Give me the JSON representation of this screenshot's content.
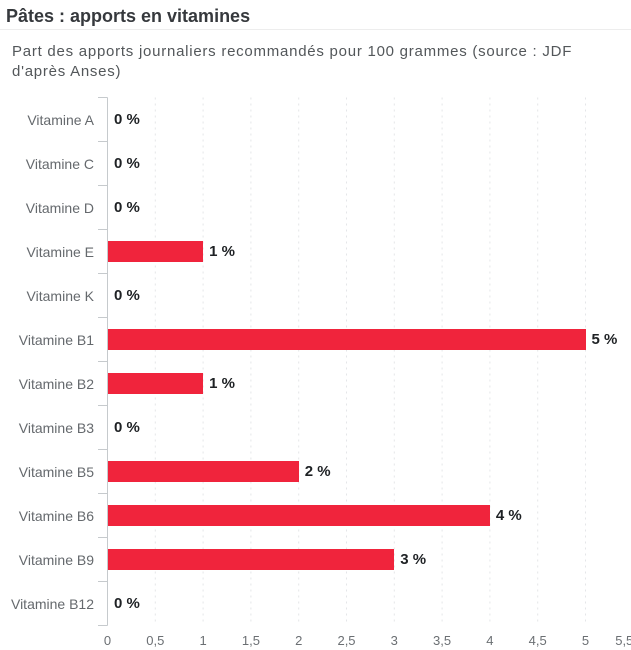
{
  "chart_data": {
    "type": "bar",
    "orientation": "horizontal",
    "title": "Pâtes : apports en vitamines",
    "subtitle": "Part des apports journaliers recommandés pour 100 grammes (source : JDF\nd'après Anses)",
    "categories": [
      "Vitamine A",
      "Vitamine C",
      "Vitamine D",
      "Vitamine E",
      "Vitamine K",
      "Vitamine B1",
      "Vitamine B2",
      "Vitamine B3",
      "Vitamine B5",
      "Vitamine B6",
      "Vitamine B9",
      "Vitamine B12"
    ],
    "values": [
      0,
      0,
      0,
      1,
      0,
      5,
      1,
      0,
      2,
      4,
      3,
      0
    ],
    "value_labels": [
      "0 %",
      "0 %",
      "0 %",
      "1 %",
      "0 %",
      "5 %",
      "1 %",
      "0 %",
      "2 %",
      "4 %",
      "3 %",
      "0 %"
    ],
    "unit": "%",
    "xlim": [
      0,
      5.5
    ],
    "x_ticks": [
      0,
      0.5,
      1,
      1.5,
      2,
      2.5,
      3,
      3.5,
      4,
      4.5,
      5,
      5.5
    ],
    "x_tick_labels": [
      "0",
      "0,5",
      "1",
      "1,5",
      "2",
      "2,5",
      "3",
      "3,5",
      "4",
      "4,5",
      "5",
      "5,5"
    ],
    "bar_color": "#f0243c",
    "grid": "vertical-dashed",
    "legend": "none",
    "colors": {
      "bar": "#f0243c",
      "axis": "#c6cacd",
      "gridline": "#e4e6e8",
      "title_text": "#36393d",
      "subtitle_text": "#53575a",
      "category_text": "#65696d",
      "value_text": "#1e2124",
      "tick_text": "#6b6f73"
    }
  }
}
